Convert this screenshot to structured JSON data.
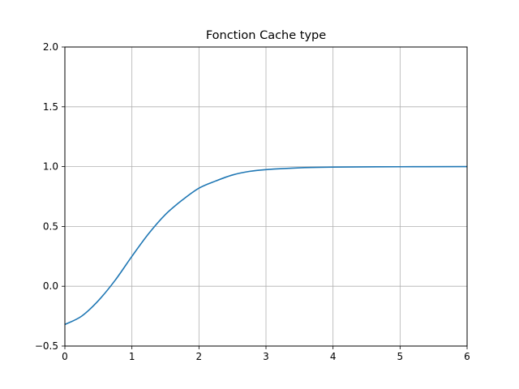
{
  "chart_data": {
    "type": "line",
    "title": "Fonction Cache type",
    "xlabel": "",
    "ylabel": "",
    "xlim": [
      0,
      6
    ],
    "ylim": [
      -0.5,
      2.0
    ],
    "x_ticks": [
      "0",
      "1",
      "2",
      "3",
      "4",
      "5",
      "6"
    ],
    "y_ticks": [
      "−0.5",
      "0.0",
      "0.5",
      "1.0",
      "1.5",
      "2.0"
    ],
    "grid": true,
    "series": [
      {
        "color": "#1f77b4",
        "x": [
          0,
          0.25,
          0.5,
          0.75,
          1.0,
          1.25,
          1.5,
          1.75,
          2.0,
          2.25,
          2.5,
          2.75,
          3.0,
          3.5,
          4.0,
          5.0,
          6.0
        ],
        "y": [
          -0.32,
          -0.25,
          -0.12,
          0.05,
          0.25,
          0.44,
          0.6,
          0.72,
          0.82,
          0.88,
          0.93,
          0.96,
          0.975,
          0.99,
          0.996,
          0.999,
          1.0
        ]
      }
    ]
  }
}
